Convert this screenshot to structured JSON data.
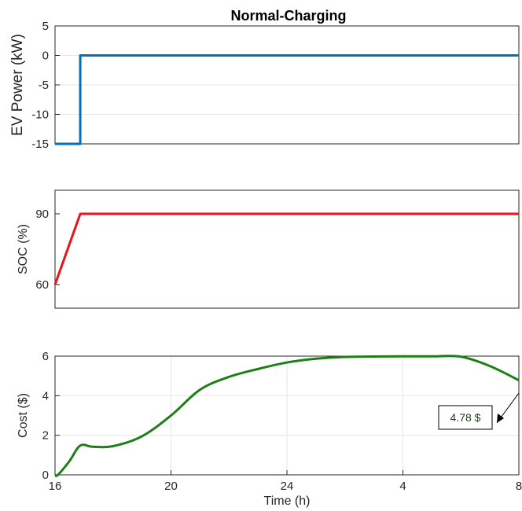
{
  "title": "Normal-Charging",
  "annotation": {
    "text": "4.78 $"
  },
  "colors": {
    "power": "#0072BD",
    "soc": "#E8141A",
    "cost": "#1E7F16",
    "grid": "#e6e6e6",
    "axis": "#262626"
  },
  "chart_data": [
    {
      "type": "line",
      "ylabel": "EV Power (kW)",
      "ylim": [
        -15,
        5
      ],
      "yticks": [
        5,
        0,
        -5,
        -10,
        -15
      ],
      "xlim": [
        0,
        16
      ],
      "grid": "on",
      "series": [
        {
          "x": [
            0,
            0.87,
            0.87,
            16
          ],
          "y": [
            -15,
            -15,
            0,
            0
          ]
        }
      ]
    },
    {
      "type": "line",
      "ylabel": "SOC (%)",
      "ylim": [
        50,
        100
      ],
      "yticks": [
        90,
        60
      ],
      "xlim": [
        0,
        16
      ],
      "grid": "off",
      "series": [
        {
          "x": [
            0,
            0.87,
            16
          ],
          "y": [
            60,
            90,
            90
          ]
        }
      ]
    },
    {
      "type": "line",
      "ylabel": "Cost ($)",
      "xlabel": "Time (h)",
      "ylim": [
        0,
        6
      ],
      "yticks": [
        6,
        4,
        2,
        0
      ],
      "xlim": [
        0,
        16
      ],
      "xticks": [
        0,
        4,
        8,
        12,
        16
      ],
      "xticklabels": [
        "16",
        "20",
        "24",
        "4",
        "8"
      ],
      "grid": "on",
      "series": [
        {
          "x": [
            0,
            0.1,
            0.5,
            0.87,
            1.3,
            2.0,
            3.0,
            4.0,
            5.0,
            6.0,
            7.0,
            8.0,
            9.0,
            10.0,
            11.0,
            12.0,
            13.0,
            14.0,
            15.0,
            16.0
          ],
          "y": [
            0,
            0.0,
            0.7,
            1.48,
            1.42,
            1.45,
            1.95,
            3.0,
            4.3,
            4.95,
            5.35,
            5.68,
            5.87,
            5.96,
            5.98,
            5.99,
            5.99,
            5.97,
            5.5,
            4.78
          ]
        }
      ]
    }
  ]
}
